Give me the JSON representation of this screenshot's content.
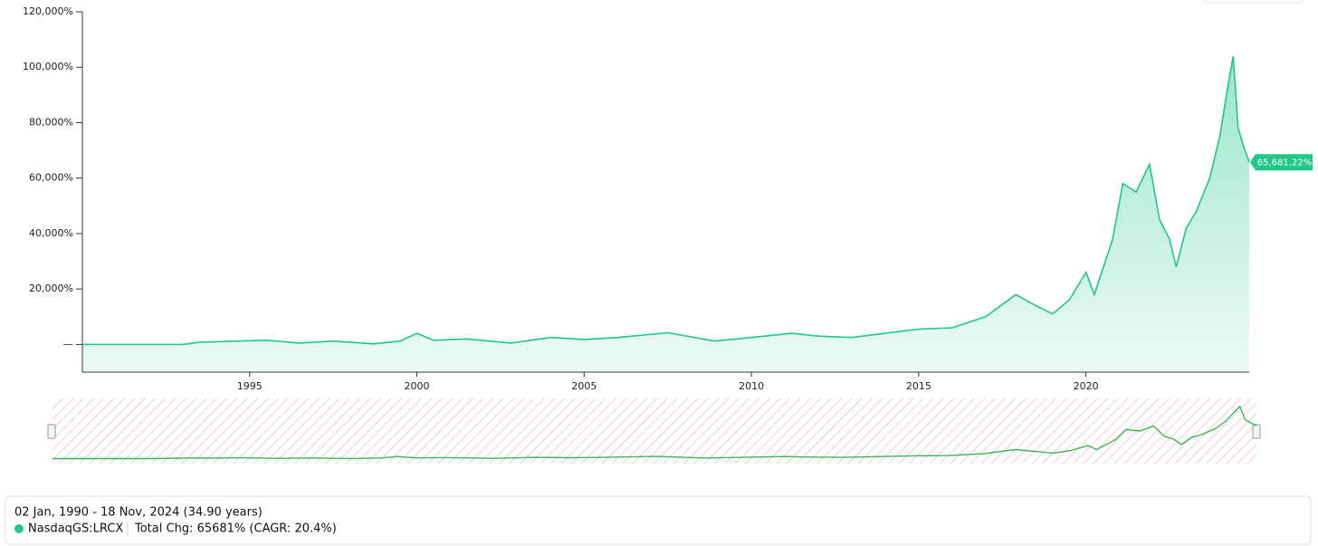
{
  "chart_data": {
    "type": "area",
    "x": [
      1990,
      1993,
      1993.5,
      1995.5,
      1996.5,
      1997.5,
      1998.7,
      1999.5,
      2000.0,
      2000.5,
      2001.5,
      2002.8,
      2004,
      2005,
      2006,
      2007.5,
      2008.9,
      2010,
      2011.2,
      2012,
      2013,
      2014,
      2015,
      2016,
      2017,
      2017.9,
      2018.5,
      2019,
      2019.5,
      2020,
      2020.25,
      2020.8,
      2021.1,
      2021.5,
      2021.9,
      2022.2,
      2022.5,
      2022.7,
      2023,
      2023.3,
      2023.7,
      2024.0,
      2024.2,
      2024.4,
      2024.55,
      2024.7,
      2024.88
    ],
    "series": [
      {
        "name": "NasdaqGS:LRCX",
        "color": "#1fc788",
        "values": [
          0,
          0,
          800,
          1500,
          500,
          1200,
          200,
          1200,
          4000,
          1500,
          2000,
          500,
          2500,
          1800,
          2500,
          4200,
          1200,
          2500,
          4000,
          3000,
          2500,
          4000,
          5500,
          6000,
          10000,
          18000,
          14000,
          11000,
          16000,
          26000,
          18000,
          38000,
          58000,
          55000,
          65000,
          45000,
          38000,
          28000,
          42000,
          48000,
          60000,
          75000,
          90000,
          104000,
          78000,
          72000,
          65681.22
        ]
      }
    ],
    "xlim": [
      1990,
      2024.88
    ],
    "xticks": [
      1995,
      2000,
      2005,
      2010,
      2015,
      2020
    ],
    "ylim": [
      -10000,
      120000
    ],
    "yticks": [
      {
        "value": 0,
        "label": "—"
      },
      {
        "value": 20000,
        "label": "20,000%"
      },
      {
        "value": 40000,
        "label": "40,000%"
      },
      {
        "value": 60000,
        "label": "60,000%"
      },
      {
        "value": 80000,
        "label": "80,000%"
      },
      {
        "value": 100000,
        "label": "100,000%"
      },
      {
        "value": 120000,
        "label": "120,000%"
      }
    ],
    "last_value": {
      "value": 65681.22,
      "label": "65,681.22%"
    },
    "range": "02 Jan, 1990 - 18 Nov, 2024 (34.90 years)",
    "summary": "Total Chg: 65681% (CAGR: 20.4%)"
  }
}
